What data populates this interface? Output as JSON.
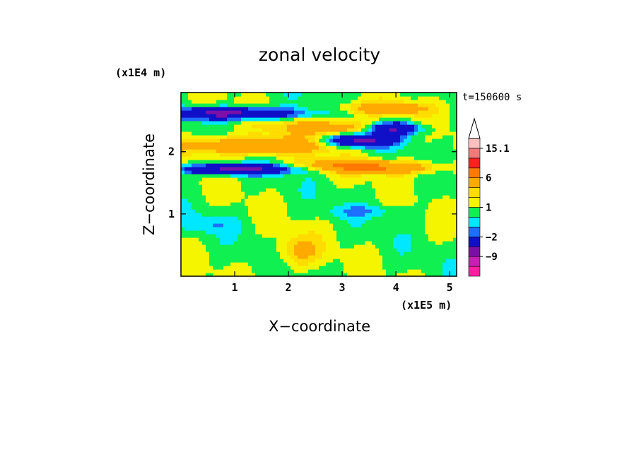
{
  "chart_data": {
    "type": "heatmap",
    "title": "zonal velocity",
    "xlabel": "X−coordinate",
    "ylabel": "Z−coordinate",
    "x_scale_label": "(x1E5 m)",
    "y_scale_label": "(x1E4 m)",
    "time_label": "t=150600 s",
    "xlim": [
      0,
      5.13
    ],
    "ylim": [
      0,
      2.95
    ],
    "x_ticks": [
      1,
      2,
      3,
      4,
      5
    ],
    "y_ticks": [
      1,
      2
    ],
    "colorbar": {
      "levels": [
        -15,
        -12,
        -9,
        -6,
        -2,
        -1,
        0,
        1,
        2,
        3,
        6,
        9,
        12,
        15.1
      ],
      "colors": [
        "#ff1ea0",
        "#c81eb4",
        "#7a10a8",
        "#1010c8",
        "#1e6eff",
        "#00e8ff",
        "#10f050",
        "#f5f500",
        "#ffdd00",
        "#ffaa00",
        "#ff7800",
        "#ff2020",
        "#f07a7a",
        "#ffc0c0"
      ],
      "tick_labels": [
        "15.1",
        "6",
        "1",
        "−2",
        "−9"
      ],
      "tick_values": [
        15.1,
        6,
        1,
        -2,
        -9
      ],
      "extend": "max"
    },
    "fields": [
      {
        "x": 0.9,
        "z": 2.62,
        "rx": 1.2,
        "rz": 0.09,
        "v": -8
      },
      {
        "x": 1.0,
        "z": 1.72,
        "rx": 1.0,
        "rz": 0.08,
        "v": -8
      },
      {
        "x": 3.35,
        "z": 2.18,
        "rx": 0.6,
        "rz": 0.1,
        "v": -8
      },
      {
        "x": 3.95,
        "z": 2.38,
        "rx": 0.5,
        "rz": 0.1,
        "v": -8
      },
      {
        "x": 1.3,
        "z": 2.1,
        "rx": 1.4,
        "rz": 0.14,
        "v": 5
      },
      {
        "x": 2.9,
        "z": 2.4,
        "rx": 1.1,
        "rz": 0.12,
        "v": 4
      },
      {
        "x": 3.8,
        "z": 2.7,
        "rx": 0.8,
        "rz": 0.1,
        "v": 4
      },
      {
        "x": 3.8,
        "z": 1.75,
        "rx": 1.0,
        "rz": 0.1,
        "v": 5
      },
      {
        "x": 2.9,
        "z": 1.8,
        "rx": 0.8,
        "rz": 0.09,
        "v": 3
      },
      {
        "x": 0.5,
        "z": 0.85,
        "rx": 0.5,
        "rz": 0.15,
        "v": -1.5
      },
      {
        "x": 3.4,
        "z": 1.05,
        "rx": 0.8,
        "rz": 0.1,
        "v": -1.5
      },
      {
        "x": 2.2,
        "z": 0.4,
        "rx": 0.4,
        "rz": 0.25,
        "v": 2.5
      }
    ]
  }
}
